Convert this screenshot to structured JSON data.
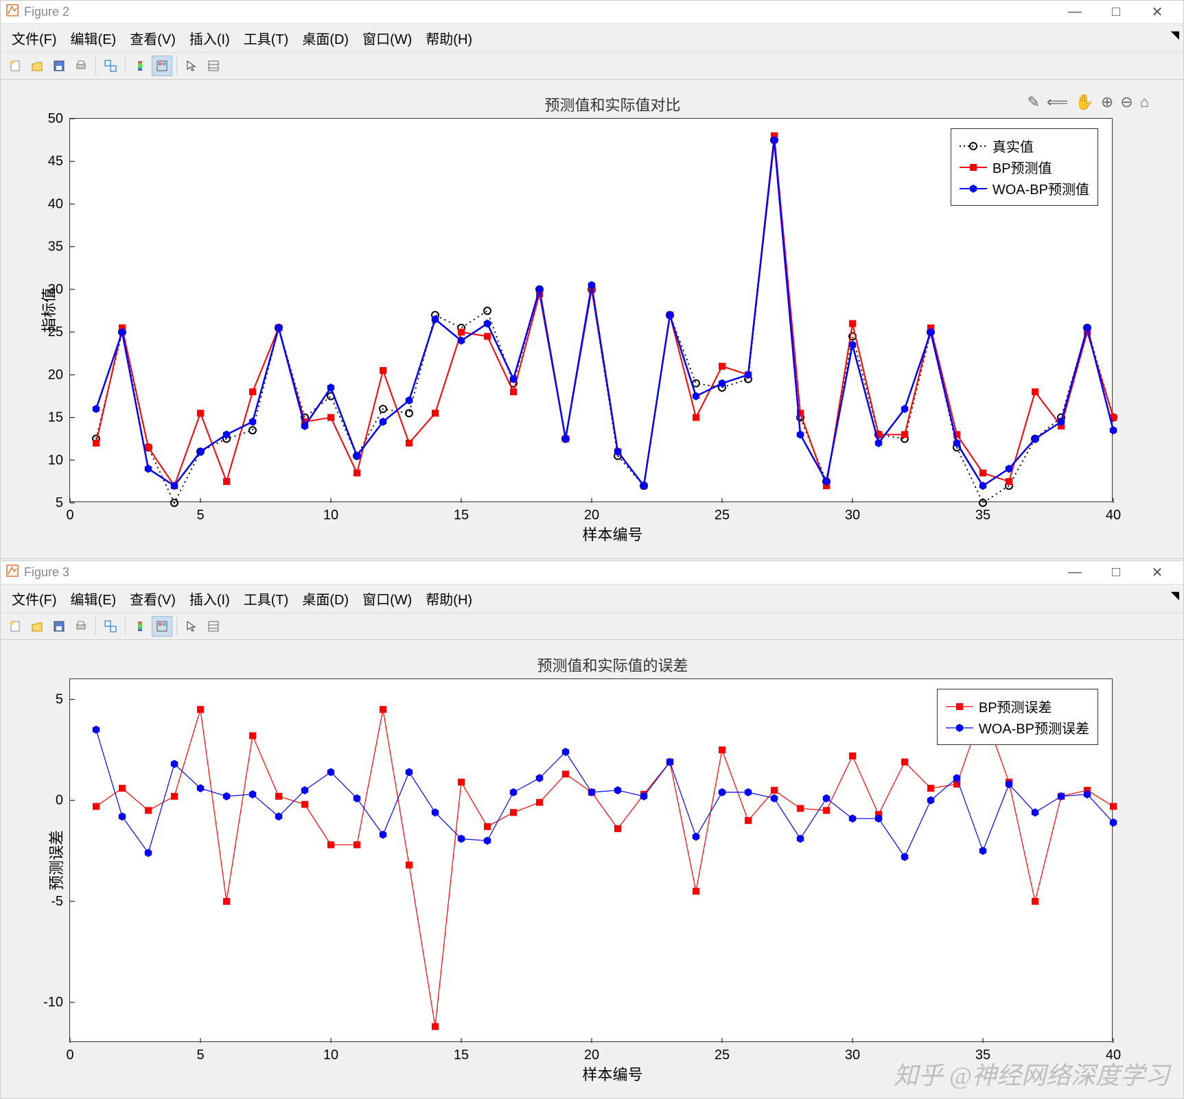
{
  "figure1": {
    "title": "Figure 2",
    "menu": [
      "文件(F)",
      "编辑(E)",
      "查看(V)",
      "插入(I)",
      "工具(T)",
      "桌面(D)",
      "窗口(W)",
      "帮助(H)"
    ],
    "plot_title": "预测值和实际值对比",
    "xlabel": "样本编号",
    "ylabel": "指标值",
    "chart": {
      "type": "line",
      "xlim": [
        0,
        40
      ],
      "ylim": [
        5,
        50
      ],
      "xticks": [
        0,
        5,
        10,
        15,
        20,
        25,
        30,
        35,
        40
      ],
      "yticks": [
        5,
        10,
        15,
        20,
        25,
        30,
        35,
        40,
        45,
        50
      ],
      "x": [
        1,
        2,
        3,
        4,
        5,
        6,
        7,
        8,
        9,
        10,
        11,
        12,
        13,
        14,
        15,
        16,
        17,
        18,
        19,
        20,
        21,
        22,
        23,
        24,
        25,
        26,
        27,
        28,
        29,
        30,
        31,
        32,
        33,
        34,
        35,
        36,
        37,
        38,
        39,
        40
      ],
      "series": [
        {
          "id": "actual",
          "label": "真实值",
          "color": "#000000",
          "line": "dotted",
          "marker": "circle-open",
          "width": 2,
          "y": [
            12.5,
            25,
            11.5,
            5,
            11,
            12.5,
            13.5,
            25.5,
            15,
            17.5,
            10.5,
            16,
            15.5,
            27,
            25.5,
            27.5,
            19,
            30,
            12.5,
            30,
            10.5,
            7,
            27,
            19,
            18.5,
            19.5,
            47.5,
            15,
            7.5,
            24.5,
            13,
            12.5,
            25,
            11.5,
            5,
            7,
            12.5,
            15,
            25.5,
            15
          ]
        },
        {
          "id": "bp",
          "label": "BP预测值",
          "color": "#ff0000",
          "line": "solid",
          "marker": "square",
          "width": 2,
          "y": [
            12,
            25.5,
            11.5,
            7,
            15.5,
            7.5,
            18,
            25.5,
            14.5,
            15,
            8.5,
            20.5,
            12,
            15.5,
            25,
            24.5,
            18,
            29.5,
            12.5,
            30,
            11,
            7,
            27,
            15,
            21,
            20,
            48,
            15.5,
            7,
            26,
            13,
            13,
            25.5,
            13,
            8.5,
            7.5,
            18,
            14,
            25,
            15
          ]
        },
        {
          "id": "woabp",
          "label": "WOA-BP预测值",
          "color": "#0000ff",
          "line": "solid",
          "marker": "hex",
          "width": 2.5,
          "y": [
            16,
            25,
            9,
            7,
            11,
            13,
            14.5,
            25.5,
            14,
            18.5,
            10.5,
            14.5,
            17,
            26.5,
            24,
            26,
            19.5,
            30,
            12.5,
            30.5,
            11,
            7,
            27,
            17.5,
            19,
            20,
            47.5,
            13,
            7.5,
            23.5,
            12,
            16,
            25,
            12,
            7,
            9,
            12.5,
            14.5,
            25.5,
            13.5
          ]
        }
      ],
      "background_color": "#ffffff",
      "axis_color": "#333333",
      "tick_fontsize": 20,
      "title_fontsize": 22
    },
    "legend": {
      "position": "top-right",
      "items": [
        "真实值",
        "BP预测值",
        "WOA-BP预测值"
      ]
    }
  },
  "figure2": {
    "title": "Figure 3",
    "menu": [
      "文件(F)",
      "编辑(E)",
      "查看(V)",
      "插入(I)",
      "工具(T)",
      "桌面(D)",
      "窗口(W)",
      "帮助(H)"
    ],
    "plot_title": "预测值和实际值的误差",
    "xlabel": "样本编号",
    "ylabel": "预测误差",
    "chart": {
      "type": "line",
      "xlim": [
        0,
        40
      ],
      "ylim": [
        -12,
        6
      ],
      "xticks": [
        0,
        5,
        10,
        15,
        20,
        25,
        30,
        35,
        40
      ],
      "yticks": [
        -10,
        -5,
        0,
        5
      ],
      "x": [
        1,
        2,
        3,
        4,
        5,
        6,
        7,
        8,
        9,
        10,
        11,
        12,
        13,
        14,
        15,
        16,
        17,
        18,
        19,
        20,
        21,
        22,
        23,
        24,
        25,
        26,
        27,
        28,
        29,
        30,
        31,
        32,
        33,
        34,
        35,
        36,
        37,
        38,
        39,
        40
      ],
      "series": [
        {
          "id": "bp_err",
          "label": "BP预测误差",
          "color": "#ff0000",
          "line": "solid",
          "marker": "square",
          "width": 1.2,
          "y": [
            -0.3,
            0.6,
            -0.5,
            0.2,
            4.5,
            -5,
            3.2,
            0.2,
            -0.2,
            -2.2,
            -2.2,
            4.5,
            -3.2,
            -11.2,
            0.9,
            -1.3,
            -0.6,
            -0.1,
            1.3,
            0.4,
            -1.4,
            0.3,
            1.9,
            -4.5,
            2.5,
            -1,
            0.5,
            -0.4,
            -0.5,
            2.2,
            -0.7,
            1.9,
            0.6,
            0.8,
            4.5,
            0.9,
            -5,
            0.2,
            0.5,
            -0.3
          ]
        },
        {
          "id": "woabp_err",
          "label": "WOA-BP预测误差",
          "color": "#0000ff",
          "line": "solid",
          "marker": "hex",
          "width": 1.2,
          "y": [
            3.5,
            -0.8,
            -2.6,
            1.8,
            0.6,
            0.2,
            0.3,
            -0.8,
            0.5,
            1.4,
            0.1,
            -1.7,
            1.4,
            -0.6,
            -1.9,
            -2,
            0.4,
            1.1,
            2.4,
            0.4,
            0.5,
            0.2,
            1.9,
            -1.8,
            0.4,
            0.4,
            0.1,
            -1.9,
            0.1,
            -0.9,
            -0.9,
            -2.8,
            0,
            1.1,
            -2.5,
            0.8,
            -0.6,
            0.2,
            0.3,
            -1.1
          ]
        }
      ],
      "background_color": "#ffffff",
      "axis_color": "#333333",
      "tick_fontsize": 20,
      "title_fontsize": 22
    },
    "legend": {
      "position": "top-right",
      "items": [
        "BP预测误差",
        "WOA-BP预测误差"
      ]
    }
  },
  "watermark": "知乎 @神经网络深度学习",
  "winbuttons": {
    "min": "—",
    "max": "□",
    "close": "✕"
  },
  "toolbar_icons": [
    "new",
    "open",
    "save",
    "print",
    "|",
    "link",
    "|",
    "color",
    "insp",
    "|",
    "arrow",
    "props"
  ],
  "axes_tools": [
    "brush",
    "pan-prev",
    "hand",
    "zoom-in",
    "zoom-out",
    "home"
  ]
}
